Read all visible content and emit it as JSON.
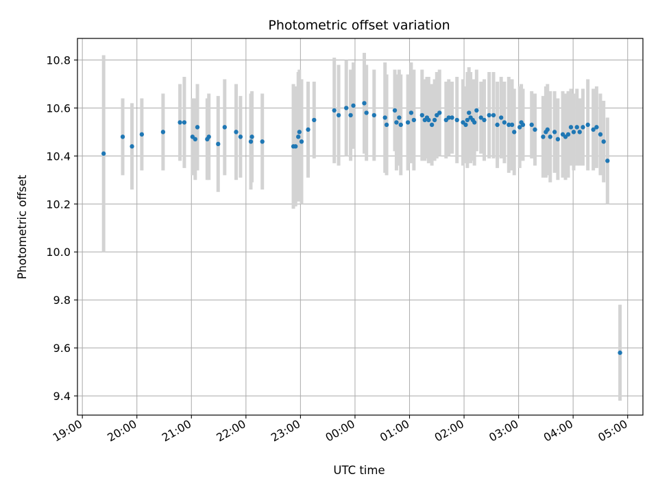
{
  "chart_data": {
    "type": "scatter",
    "title": "Photometric offset variation",
    "xlabel": "UTC time",
    "ylabel": "Photometric offset",
    "x_unit": "hours UTC",
    "x_ticks": [
      {
        "h": 19,
        "label": "19:00"
      },
      {
        "h": 20,
        "label": "20:00"
      },
      {
        "h": 21,
        "label": "21:00"
      },
      {
        "h": 22,
        "label": "22:00"
      },
      {
        "h": 23,
        "label": "23:00"
      },
      {
        "h": 24,
        "label": "00:00"
      },
      {
        "h": 25,
        "label": "01:00"
      },
      {
        "h": 26,
        "label": "02:00"
      },
      {
        "h": 27,
        "label": "03:00"
      },
      {
        "h": 28,
        "label": "04:00"
      },
      {
        "h": 29,
        "label": "05:00"
      }
    ],
    "y_ticks": [
      9.4,
      9.6,
      9.8,
      10.0,
      10.2,
      10.4,
      10.6,
      10.8
    ],
    "y_tick_labels": [
      "9.4",
      "9.6",
      "9.8",
      "10.0",
      "10.2",
      "10.4",
      "10.6",
      "10.8"
    ],
    "xlim": [
      18.91,
      29.28
    ],
    "ylim": [
      9.32,
      10.89
    ],
    "grid": true,
    "colors": {
      "point": "#1f77b4",
      "errorbar": "#d3d3d3",
      "grid": "#b0b0b0"
    },
    "series": [
      {
        "points": [
          [
            19.39,
            10.41,
            0.41
          ],
          [
            19.74,
            10.48,
            0.16
          ],
          [
            19.91,
            10.44,
            0.18
          ],
          [
            20.09,
            10.49,
            0.15
          ],
          [
            20.48,
            10.5,
            0.16
          ],
          [
            20.79,
            10.54,
            0.16
          ],
          [
            20.87,
            10.54,
            0.19
          ],
          [
            21.02,
            10.48,
            0.16
          ],
          [
            21.07,
            10.47,
            0.17
          ],
          [
            21.11,
            10.52,
            0.18
          ],
          [
            21.29,
            10.47,
            0.17
          ],
          [
            21.32,
            10.48,
            0.18
          ],
          [
            21.49,
            10.45,
            0.2
          ],
          [
            21.61,
            10.52,
            0.2
          ],
          [
            21.82,
            10.5,
            0.2
          ],
          [
            21.9,
            10.48,
            0.17
          ],
          [
            22.09,
            10.46,
            0.2
          ],
          [
            22.11,
            10.48,
            0.19
          ],
          [
            22.3,
            10.46,
            0.2
          ],
          [
            22.87,
            10.44,
            0.26
          ],
          [
            22.91,
            10.44,
            0.25
          ],
          [
            22.96,
            10.48,
            0.27
          ],
          [
            22.98,
            10.5,
            0.26
          ],
          [
            23.02,
            10.46,
            0.26
          ],
          [
            23.14,
            10.51,
            0.2
          ],
          [
            23.25,
            10.55,
            0.16
          ],
          [
            23.62,
            10.59,
            0.22
          ],
          [
            23.7,
            10.57,
            0.21
          ],
          [
            23.84,
            10.6,
            0.2
          ],
          [
            23.92,
            10.57,
            0.19
          ],
          [
            23.97,
            10.61,
            0.18
          ],
          [
            24.17,
            10.62,
            0.21
          ],
          [
            24.21,
            10.58,
            0.2
          ],
          [
            24.35,
            10.57,
            0.19
          ],
          [
            24.55,
            10.56,
            0.23
          ],
          [
            24.58,
            10.53,
            0.21
          ],
          [
            24.73,
            10.59,
            0.17
          ],
          [
            24.76,
            10.54,
            0.2
          ],
          [
            24.81,
            10.56,
            0.2
          ],
          [
            24.84,
            10.53,
            0.21
          ],
          [
            24.97,
            10.54,
            0.2
          ],
          [
            25.03,
            10.58,
            0.21
          ],
          [
            25.08,
            10.55,
            0.21
          ],
          [
            25.23,
            10.57,
            0.19
          ],
          [
            25.28,
            10.55,
            0.17
          ],
          [
            25.32,
            10.56,
            0.17
          ],
          [
            25.35,
            10.55,
            0.18
          ],
          [
            25.41,
            10.53,
            0.17
          ],
          [
            25.46,
            10.55,
            0.17
          ],
          [
            25.5,
            10.57,
            0.18
          ],
          [
            25.55,
            10.58,
            0.18
          ],
          [
            25.67,
            10.55,
            0.16
          ],
          [
            25.72,
            10.56,
            0.16
          ],
          [
            25.78,
            10.56,
            0.15
          ],
          [
            25.87,
            10.55,
            0.18
          ],
          [
            25.98,
            10.54,
            0.18
          ],
          [
            26.03,
            10.53,
            0.16
          ],
          [
            26.06,
            10.55,
            0.2
          ],
          [
            26.09,
            10.58,
            0.19
          ],
          [
            26.12,
            10.56,
            0.19
          ],
          [
            26.16,
            10.55,
            0.17
          ],
          [
            26.19,
            10.54,
            0.18
          ],
          [
            26.23,
            10.59,
            0.17
          ],
          [
            26.31,
            10.56,
            0.15
          ],
          [
            26.37,
            10.55,
            0.17
          ],
          [
            26.46,
            10.57,
            0.18
          ],
          [
            26.54,
            10.57,
            0.18
          ],
          [
            26.61,
            10.53,
            0.18
          ],
          [
            26.68,
            10.56,
            0.17
          ],
          [
            26.74,
            10.54,
            0.17
          ],
          [
            26.82,
            10.53,
            0.2
          ],
          [
            26.88,
            10.53,
            0.19
          ],
          [
            26.92,
            10.5,
            0.18
          ],
          [
            27.02,
            10.52,
            0.17
          ],
          [
            27.05,
            10.54,
            0.16
          ],
          [
            27.08,
            10.53,
            0.15
          ],
          [
            27.24,
            10.53,
            0.14
          ],
          [
            27.3,
            10.51,
            0.15
          ],
          [
            27.45,
            10.48,
            0.17
          ],
          [
            27.5,
            10.5,
            0.19
          ],
          [
            27.53,
            10.51,
            0.19
          ],
          [
            27.58,
            10.48,
            0.19
          ],
          [
            27.66,
            10.5,
            0.17
          ],
          [
            27.72,
            10.47,
            0.17
          ],
          [
            27.81,
            10.49,
            0.18
          ],
          [
            27.86,
            10.48,
            0.18
          ],
          [
            27.91,
            10.49,
            0.18
          ],
          [
            27.96,
            10.52,
            0.16
          ],
          [
            28.01,
            10.5,
            0.16
          ],
          [
            28.07,
            10.52,
            0.16
          ],
          [
            28.12,
            10.5,
            0.14
          ],
          [
            28.18,
            10.52,
            0.16
          ],
          [
            28.27,
            10.53,
            0.19
          ],
          [
            28.37,
            10.51,
            0.17
          ],
          [
            28.43,
            10.52,
            0.17
          ],
          [
            28.5,
            10.49,
            0.17
          ],
          [
            28.56,
            10.46,
            0.17
          ],
          [
            28.63,
            10.38,
            0.18
          ],
          [
            28.86,
            9.58,
            0.2
          ]
        ]
      }
    ]
  }
}
